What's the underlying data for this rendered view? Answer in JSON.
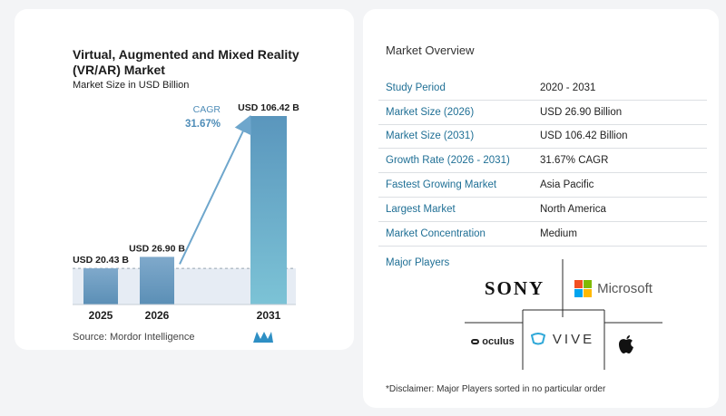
{
  "chart_data": {
    "type": "bar",
    "title": "Virtual, Augmented and Mixed Reality (VR/AR) Market",
    "subtitle": "Market Size in USD Billion",
    "categories": [
      "2025",
      "2026",
      "2031"
    ],
    "values": [
      20.43,
      26.9,
      106.42
    ],
    "value_labels": [
      "USD 20.43 B",
      "USD 26.90 B",
      "USD 106.42 B"
    ],
    "cagr_label": "CAGR",
    "cagr_value": "31.67%",
    "colors": {
      "bar_start": "#7fa9cb",
      "bar_end": "#5b8fb6",
      "last_bar_start": "#7cc3d6",
      "last_bar_end": "#5a96bd",
      "arrow": "#6ea6cc",
      "band": "#e6ecf4"
    }
  },
  "source": {
    "label": "Source:",
    "value": "Mordor Intelligence"
  },
  "overview": {
    "title": "Market Overview",
    "rows": [
      {
        "label": "Study Period",
        "value": "2020 - 2031"
      },
      {
        "label": "Market Size (2026)",
        "value": "USD 26.90 Billion"
      },
      {
        "label": "Market Size (2031)",
        "value": "USD 106.42 Billion"
      },
      {
        "label": "Growth Rate (2026 - 2031)",
        "value": "31.67% CAGR"
      },
      {
        "label": "Fastest Growing Market",
        "value": "Asia Pacific"
      },
      {
        "label": "Largest Market",
        "value": "North America"
      },
      {
        "label": "Market Concentration",
        "value": "Medium"
      }
    ]
  },
  "players": {
    "label": "Major Players",
    "logos": {
      "sony": "SONY",
      "microsoft": "Microsoft",
      "oculus": "oculus",
      "vive": "VIVE",
      "apple": "apple-icon"
    },
    "microsoft_colors": [
      "#f25022",
      "#7fba00",
      "#00a4ef",
      "#ffb900"
    ]
  },
  "disclaimer": "*Disclaimer: Major Players sorted in no particular order"
}
